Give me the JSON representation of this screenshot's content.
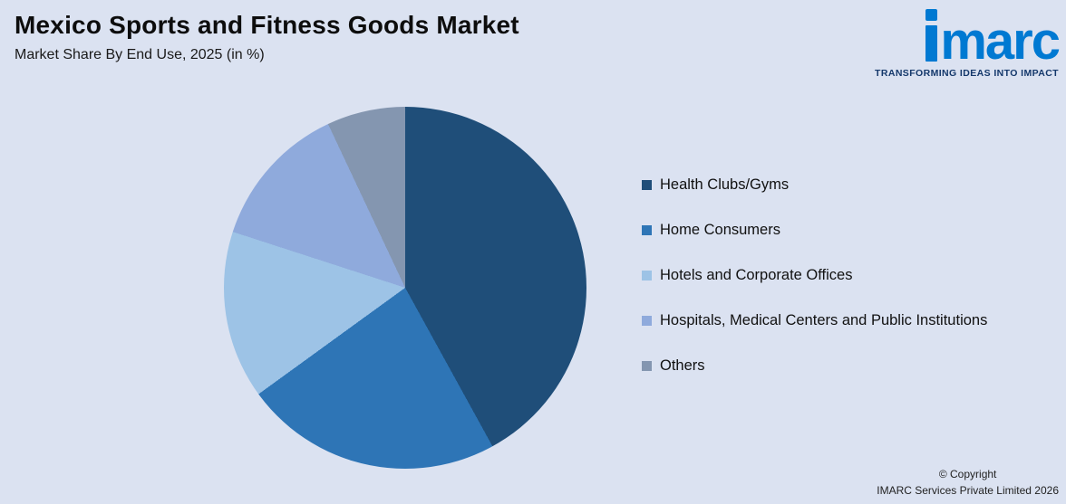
{
  "header": {
    "title": "Mexico Sports and Fitness Goods Market",
    "subtitle": "Market Share By End Use, 2025 (in %)"
  },
  "logo": {
    "wordmark": "marc",
    "tagline": "TRANSFORMING IDEAS INTO IMPACT"
  },
  "chart_data": {
    "type": "pie",
    "title": "Market Share By End Use, 2025 (in %)",
    "start_angle_deg": 0,
    "direction": "clockwise",
    "legend_position": "right",
    "slices": [
      {
        "label": "Health Clubs/Gyms",
        "value": 42,
        "color": "#1F4E79"
      },
      {
        "label": "Home Consumers",
        "value": 23,
        "color": "#2E75B6"
      },
      {
        "label": "Hotels and Corporate Offices",
        "value": 15,
        "color": "#9DC3E6"
      },
      {
        "label": "Hospitals, Medical Centers and Public Institutions",
        "value": 13,
        "color": "#8FAADC"
      },
      {
        "label": "Others",
        "value": 7,
        "color": "#8496B0"
      }
    ]
  },
  "footer": {
    "copyright_line1": "© Copyright",
    "copyright_line2": "IMARC Services Private Limited 2026"
  }
}
